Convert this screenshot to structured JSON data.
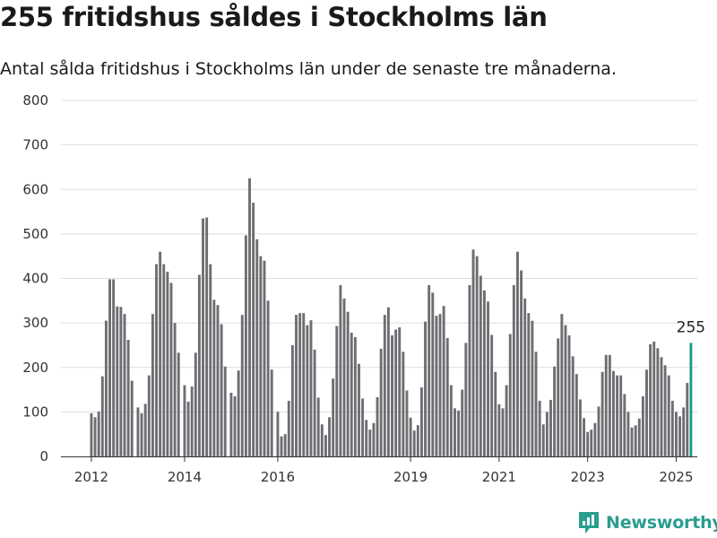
{
  "header": {
    "title": "255 fritidshus såldes i Stockholms län",
    "subtitle": "Antal sålda fritidshus i Stockholms län under de senaste tre månaderna."
  },
  "brand": {
    "name": "Newsworthy",
    "icon": "newsworthy-logo-icon",
    "color": "#2a9d8f"
  },
  "colors": {
    "bar": "#6d6d72",
    "highlight": "#1a9a8e",
    "grid": "#dddddd",
    "axis": "#333333"
  },
  "chart_data": {
    "type": "bar",
    "ylim": [
      0,
      800
    ],
    "yticks": [
      0,
      100,
      200,
      300,
      400,
      500,
      600,
      700,
      800
    ],
    "xticks": [
      {
        "label": "2012",
        "index": 0
      },
      {
        "label": "2014",
        "index": 24
      },
      {
        "label": "2016",
        "index": 48
      },
      {
        "label": "2019",
        "index": 84
      },
      {
        "label": "2021",
        "index": 108
      },
      {
        "label": "2023",
        "index": 132
      },
      {
        "label": "2025",
        "index": 156
      }
    ],
    "gaps_after": [
      11,
      23,
      35,
      47
    ],
    "highlight_label": "255",
    "values": [
      97,
      88,
      101,
      180,
      305,
      398,
      398,
      337,
      336,
      320,
      262,
      170,
      110,
      97,
      118,
      182,
      320,
      432,
      460,
      432,
      415,
      390,
      300,
      233,
      160,
      123,
      157,
      233,
      408,
      535,
      537,
      432,
      352,
      340,
      297,
      202,
      143,
      135,
      193,
      318,
      497,
      625,
      570,
      488,
      450,
      440,
      350,
      195,
      100,
      45,
      50,
      125,
      250,
      318,
      322,
      322,
      295,
      306,
      240,
      132,
      72,
      48,
      88,
      175,
      293,
      385,
      355,
      325,
      278,
      268,
      208,
      130,
      82,
      60,
      75,
      133,
      242,
      318,
      335,
      272,
      285,
      290,
      235,
      148,
      87,
      58,
      70,
      155,
      303,
      385,
      368,
      316,
      320,
      338,
      266,
      160,
      108,
      103,
      150,
      255,
      385,
      465,
      450,
      406,
      373,
      348,
      273,
      190,
      117,
      108,
      160,
      275,
      385,
      460,
      418,
      355,
      322,
      305,
      235,
      125,
      72,
      100,
      127,
      202,
      265,
      320,
      295,
      272,
      225,
      185,
      128,
      86,
      55,
      60,
      75,
      112,
      190,
      228,
      228,
      192,
      182,
      182,
      140,
      100,
      65,
      70,
      85,
      135,
      195,
      252,
      258,
      243,
      223,
      205,
      182,
      125,
      100,
      90,
      110,
      165,
      255
    ]
  }
}
